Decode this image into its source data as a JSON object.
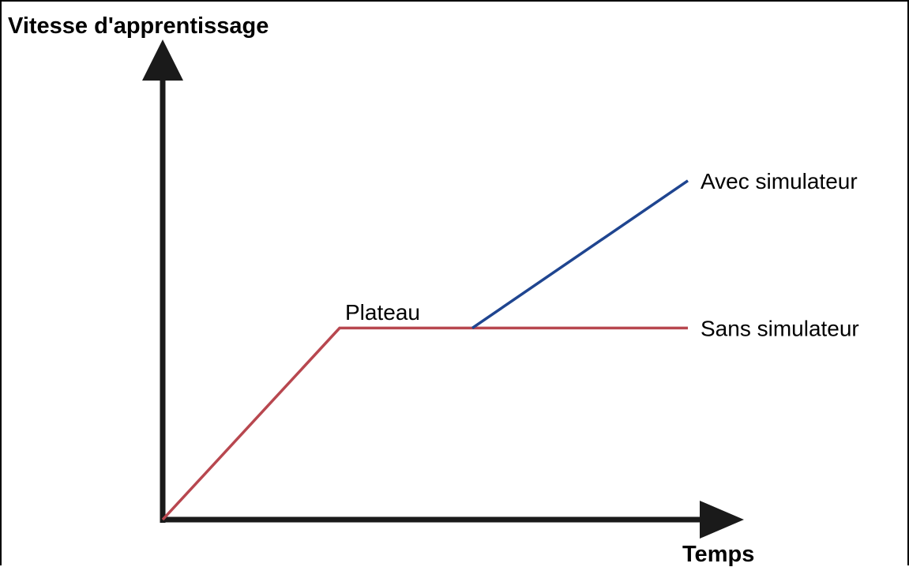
{
  "chart_data": {
    "type": "line",
    "title": "",
    "ylabel": "Vitesse d'apprentissage",
    "xlabel": "Temps",
    "xlim": [
      0,
      10
    ],
    "ylim": [
      0,
      10
    ],
    "grid": false,
    "legend": "none",
    "axis_color": "#1a1a1a",
    "series": [
      {
        "name": "Sans simulateur",
        "color": "#b8474f",
        "x": [
          0,
          3.2,
          9.5
        ],
        "y": [
          0,
          3.9,
          3.9
        ]
      },
      {
        "name": "Avec simulateur",
        "color": "#1f4590",
        "x": [
          5.6,
          9.5
        ],
        "y": [
          3.9,
          6.9
        ]
      }
    ],
    "annotations": [
      {
        "text": "Plateau",
        "x": 3.9,
        "y": 4.2
      }
    ]
  }
}
